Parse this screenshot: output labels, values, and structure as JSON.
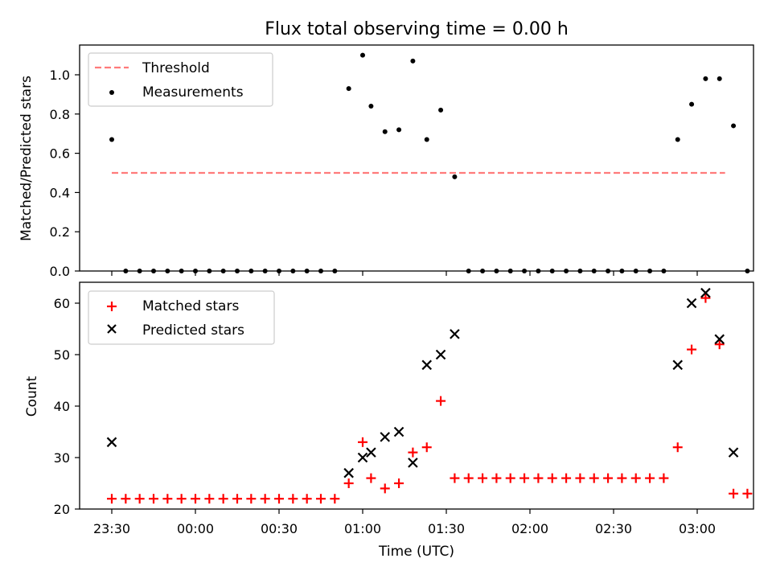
{
  "chart_data": [
    {
      "type": "scatter",
      "title": "Flux total observing time = 0.00 h",
      "ylabel": "Matched/Predicted stars",
      "xlabel": "",
      "ylim": [
        0,
        1.15
      ],
      "yticks": [
        "0.0",
        "0.2",
        "0.4",
        "0.6",
        "0.8",
        "1.0"
      ],
      "legend": {
        "placement": "top-left",
        "entries": [
          "Threshold",
          "Measurements"
        ]
      },
      "threshold": {
        "name": "Threshold",
        "value": 0.5,
        "x_from": "23:30",
        "x_to": "03:10",
        "color": "#ff7b7b"
      },
      "series": [
        {
          "name": "Measurements",
          "marker": "dot",
          "color": "#000000",
          "points": [
            [
              "23:30",
              0.67
            ],
            [
              "23:35",
              0
            ],
            [
              "23:40",
              0
            ],
            [
              "23:45",
              0
            ],
            [
              "23:50",
              0
            ],
            [
              "23:55",
              0
            ],
            [
              "00:00",
              0
            ],
            [
              "00:05",
              0
            ],
            [
              "00:10",
              0
            ],
            [
              "00:15",
              0
            ],
            [
              "00:20",
              0
            ],
            [
              "00:25",
              0
            ],
            [
              "00:30",
              0
            ],
            [
              "00:35",
              0
            ],
            [
              "00:40",
              0
            ],
            [
              "00:45",
              0
            ],
            [
              "00:50",
              0
            ],
            [
              "00:55",
              0.93
            ],
            [
              "01:00",
              1.1
            ],
            [
              "01:03",
              0.84
            ],
            [
              "01:08",
              0.71
            ],
            [
              "01:13",
              0.72
            ],
            [
              "01:18",
              1.07
            ],
            [
              "01:23",
              0.67
            ],
            [
              "01:28",
              0.82
            ],
            [
              "01:33",
              0.48
            ],
            [
              "01:38",
              0
            ],
            [
              "01:43",
              0
            ],
            [
              "01:48",
              0
            ],
            [
              "01:53",
              0
            ],
            [
              "01:58",
              0
            ],
            [
              "02:03",
              0
            ],
            [
              "02:08",
              0
            ],
            [
              "02:13",
              0
            ],
            [
              "02:18",
              0
            ],
            [
              "02:23",
              0
            ],
            [
              "02:28",
              0
            ],
            [
              "02:33",
              0
            ],
            [
              "02:38",
              0
            ],
            [
              "02:43",
              0
            ],
            [
              "02:48",
              0
            ],
            [
              "02:53",
              0.67
            ],
            [
              "02:58",
              0.85
            ],
            [
              "03:03",
              0.98
            ],
            [
              "03:08",
              0.98
            ],
            [
              "03:13",
              0.74
            ],
            [
              "03:18",
              0
            ]
          ]
        }
      ]
    },
    {
      "type": "scatter",
      "title": "",
      "ylabel": "Count",
      "xlabel": "Time (UTC)",
      "ylim": [
        20,
        64
      ],
      "yticks": [
        "20",
        "30",
        "40",
        "50",
        "60"
      ],
      "xticks": [
        "23:30",
        "00:00",
        "00:30",
        "01:00",
        "01:30",
        "02:00",
        "02:30",
        "03:00"
      ],
      "legend": {
        "placement": "top-left",
        "entries": [
          "Matched stars",
          "Predicted stars"
        ]
      },
      "series": [
        {
          "name": "Matched stars",
          "marker": "plus",
          "color": "#ff0000",
          "points": [
            [
              "23:30",
              22
            ],
            [
              "23:35",
              22
            ],
            [
              "23:40",
              22
            ],
            [
              "23:45",
              22
            ],
            [
              "23:50",
              22
            ],
            [
              "23:55",
              22
            ],
            [
              "00:00",
              22
            ],
            [
              "00:05",
              22
            ],
            [
              "00:10",
              22
            ],
            [
              "00:15",
              22
            ],
            [
              "00:20",
              22
            ],
            [
              "00:25",
              22
            ],
            [
              "00:30",
              22
            ],
            [
              "00:35",
              22
            ],
            [
              "00:40",
              22
            ],
            [
              "00:45",
              22
            ],
            [
              "00:50",
              22
            ],
            [
              "00:55",
              25
            ],
            [
              "01:00",
              33
            ],
            [
              "01:03",
              26
            ],
            [
              "01:08",
              24
            ],
            [
              "01:13",
              25
            ],
            [
              "01:18",
              31
            ],
            [
              "01:23",
              32
            ],
            [
              "01:28",
              41
            ],
            [
              "01:33",
              26
            ],
            [
              "01:38",
              26
            ],
            [
              "01:43",
              26
            ],
            [
              "01:48",
              26
            ],
            [
              "01:53",
              26
            ],
            [
              "01:58",
              26
            ],
            [
              "02:03",
              26
            ],
            [
              "02:08",
              26
            ],
            [
              "02:13",
              26
            ],
            [
              "02:18",
              26
            ],
            [
              "02:23",
              26
            ],
            [
              "02:28",
              26
            ],
            [
              "02:33",
              26
            ],
            [
              "02:38",
              26
            ],
            [
              "02:43",
              26
            ],
            [
              "02:48",
              26
            ],
            [
              "02:53",
              32
            ],
            [
              "02:58",
              51
            ],
            [
              "03:03",
              61
            ],
            [
              "03:08",
              52
            ],
            [
              "03:13",
              23
            ],
            [
              "03:18",
              23
            ]
          ]
        },
        {
          "name": "Predicted stars",
          "marker": "cross",
          "color": "#000000",
          "points": [
            [
              "23:30",
              33
            ],
            [
              "00:55",
              27
            ],
            [
              "01:00",
              30
            ],
            [
              "01:03",
              31
            ],
            [
              "01:08",
              34
            ],
            [
              "01:13",
              35
            ],
            [
              "01:18",
              29
            ],
            [
              "01:23",
              48
            ],
            [
              "01:28",
              50
            ],
            [
              "01:33",
              54
            ],
            [
              "02:53",
              48
            ],
            [
              "02:58",
              60
            ],
            [
              "03:03",
              62
            ],
            [
              "03:08",
              53
            ],
            [
              "03:13",
              31
            ]
          ]
        }
      ]
    }
  ]
}
